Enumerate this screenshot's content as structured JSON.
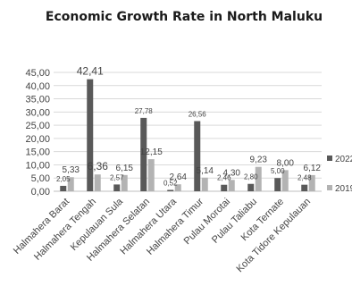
{
  "chart_data": {
    "type": "bar",
    "title": "Economic Growth Rate in  North Maluku",
    "categories": [
      "Halmahera Barat",
      "Halmahera Tengah",
      "Kepulauan Sula",
      "Halmahera Selatan",
      "Halmahera Utara",
      "Halmahera Timur",
      "Pulau Morotai",
      "Pulau Taliabu",
      "Kota Ternate",
      "Kota Tidore Kepulauan"
    ],
    "series": [
      {
        "name": "2022",
        "color": "#595959",
        "values": [
          2.05,
          42.41,
          2.57,
          27.78,
          0.52,
          26.56,
          2.46,
          2.8,
          5.0,
          2.48
        ],
        "labels": [
          "2,05",
          "42,41",
          "2,57",
          "27,78",
          "0,52",
          "26,56",
          "2,46",
          "2,80",
          "5,00",
          "2,48"
        ]
      },
      {
        "name": "2019",
        "color": "#b3b3b3",
        "values": [
          5.33,
          6.36,
          6.15,
          12.15,
          2.64,
          5.14,
          4.3,
          9.23,
          8.0,
          6.12
        ],
        "labels": [
          "5,33",
          "6,36",
          "6,15",
          "12,15",
          "2,64",
          "5,14",
          "4,30",
          "9,23",
          "8,00",
          "6,12"
        ]
      }
    ],
    "y_ticks": [
      "0,00",
      "5,00",
      "10,00",
      "15,00",
      "20,00",
      "25,00",
      "30,00",
      "35,00",
      "40,00",
      "45,00"
    ],
    "ylim": [
      0,
      45
    ],
    "grid": true,
    "legend_position": "right"
  }
}
